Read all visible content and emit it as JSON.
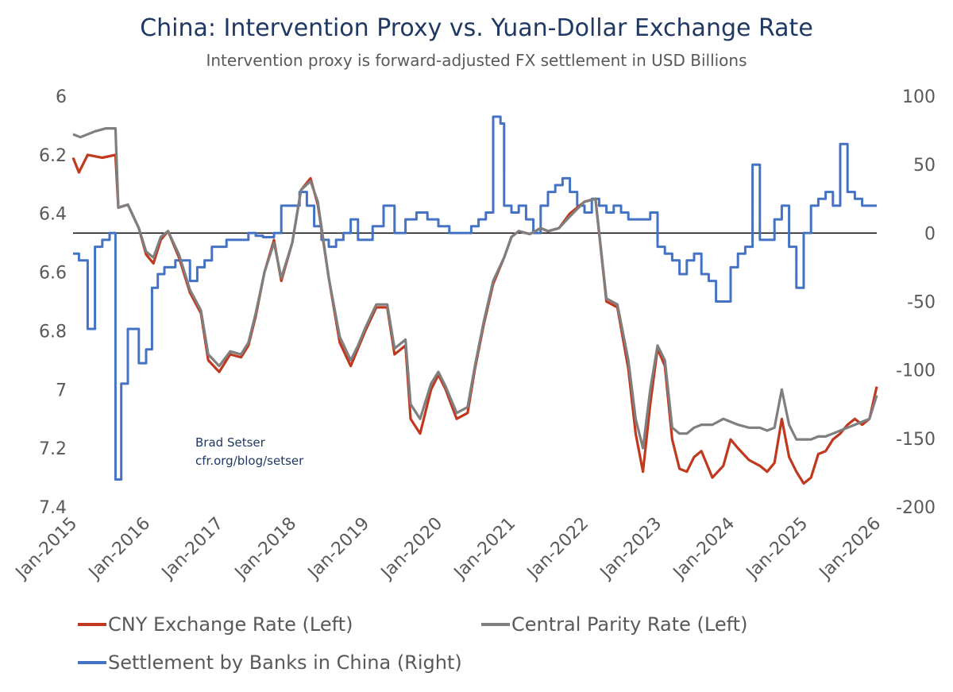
{
  "chart_data": {
    "type": "line",
    "title": "China: Intervention Proxy vs. Yuan-Dollar Exchange Rate",
    "subtitle": "Intervention proxy is forward-adjusted FX settlement in USD Billions",
    "annotation_lines": [
      "Brad Setser",
      "cfr.org/blog/setser"
    ],
    "x_tick_labels": [
      "Jan-2015",
      "Jan-2016",
      "Jan-2017",
      "Jan-2018",
      "Jan-2019",
      "Jan-2020",
      "Jan-2021",
      "Jan-2022",
      "Jan-2023",
      "Jan-2024",
      "Jan-2025",
      "Jan-2026"
    ],
    "x_range": [
      2015.0,
      2026.0
    ],
    "left_axis": {
      "ylim": [
        6.0,
        7.4
      ],
      "inverted": true,
      "tick_labels": [
        "6",
        "6.2",
        "6.4",
        "6.6",
        "6.8",
        "7",
        "7.2",
        "7.4"
      ],
      "tick_values": [
        6.0,
        6.2,
        6.4,
        6.6,
        6.8,
        7.0,
        7.2,
        7.4
      ]
    },
    "right_axis": {
      "ylim": [
        -200,
        100
      ],
      "tick_labels": [
        "100",
        "50",
        "0",
        "-50",
        "-100",
        "-150",
        "-200"
      ],
      "tick_values": [
        100,
        50,
        0,
        -50,
        -100,
        -150,
        -200
      ]
    },
    "zero_line_right": 0,
    "series": [
      {
        "name": "CNY Exchange Rate (Left)",
        "axis": "left",
        "color": "#c0391f",
        "x": [
          2015.0,
          2015.08,
          2015.2,
          2015.4,
          2015.58,
          2015.62,
          2015.75,
          2015.9,
          2016.0,
          2016.1,
          2016.2,
          2016.3,
          2016.45,
          2016.6,
          2016.75,
          2016.85,
          2017.0,
          2017.15,
          2017.3,
          2017.4,
          2017.5,
          2017.62,
          2017.75,
          2017.85,
          2018.0,
          2018.12,
          2018.25,
          2018.35,
          2018.5,
          2018.65,
          2018.8,
          2018.9,
          2019.0,
          2019.15,
          2019.3,
          2019.4,
          2019.55,
          2019.62,
          2019.75,
          2019.9,
          2020.0,
          2020.1,
          2020.25,
          2020.4,
          2020.5,
          2020.62,
          2020.75,
          2020.9,
          2021.0,
          2021.1,
          2021.25,
          2021.4,
          2021.5,
          2021.65,
          2021.8,
          2022.0,
          2022.15,
          2022.3,
          2022.45,
          2022.6,
          2022.7,
          2022.8,
          2022.9,
          2023.0,
          2023.1,
          2023.2,
          2023.3,
          2023.4,
          2023.5,
          2023.6,
          2023.75,
          2023.9,
          2024.0,
          2024.1,
          2024.25,
          2024.4,
          2024.5,
          2024.6,
          2024.7,
          2024.8,
          2024.9,
          2025.0,
          2025.1,
          2025.2,
          2025.3,
          2025.4,
          2025.5,
          2025.6,
          2025.7,
          2025.8,
          2025.9,
          2026.0
        ],
        "y": [
          6.21,
          6.26,
          6.2,
          6.21,
          6.2,
          6.38,
          6.37,
          6.45,
          6.54,
          6.57,
          6.49,
          6.46,
          6.55,
          6.67,
          6.74,
          6.9,
          6.94,
          6.88,
          6.89,
          6.85,
          6.75,
          6.6,
          6.49,
          6.63,
          6.5,
          6.32,
          6.28,
          6.37,
          6.62,
          6.84,
          6.92,
          6.86,
          6.8,
          6.72,
          6.72,
          6.88,
          6.85,
          7.1,
          7.15,
          7.0,
          6.95,
          7.0,
          7.1,
          7.08,
          6.93,
          6.78,
          6.64,
          6.55,
          6.48,
          6.46,
          6.47,
          6.45,
          6.46,
          6.45,
          6.4,
          6.36,
          6.35,
          6.7,
          6.72,
          6.93,
          7.15,
          7.28,
          7.05,
          6.86,
          6.92,
          7.17,
          7.27,
          7.28,
          7.23,
          7.21,
          7.3,
          7.26,
          7.17,
          7.2,
          7.24,
          7.26,
          7.28,
          7.25,
          7.1,
          7.23,
          7.28,
          7.32,
          7.3,
          7.22,
          7.21,
          7.17,
          7.15,
          7.12,
          7.1,
          7.12,
          7.1,
          6.99
        ]
      },
      {
        "name": "Central Parity Rate (Left)",
        "axis": "left",
        "color": "#7f7f7f",
        "x": [
          2015.0,
          2015.1,
          2015.3,
          2015.45,
          2015.58,
          2015.62,
          2015.75,
          2015.9,
          2016.0,
          2016.1,
          2016.2,
          2016.3,
          2016.45,
          2016.6,
          2016.75,
          2016.85,
          2017.0,
          2017.15,
          2017.3,
          2017.4,
          2017.5,
          2017.62,
          2017.75,
          2017.85,
          2018.0,
          2018.12,
          2018.25,
          2018.35,
          2018.5,
          2018.65,
          2018.8,
          2018.9,
          2019.0,
          2019.15,
          2019.3,
          2019.4,
          2019.55,
          2019.62,
          2019.75,
          2019.9,
          2020.0,
          2020.1,
          2020.25,
          2020.4,
          2020.5,
          2020.62,
          2020.75,
          2020.9,
          2021.0,
          2021.1,
          2021.25,
          2021.4,
          2021.5,
          2021.65,
          2021.8,
          2022.0,
          2022.15,
          2022.3,
          2022.45,
          2022.6,
          2022.7,
          2022.8,
          2022.9,
          2023.0,
          2023.1,
          2023.2,
          2023.3,
          2023.4,
          2023.5,
          2023.6,
          2023.75,
          2023.9,
          2024.0,
          2024.1,
          2024.25,
          2024.4,
          2024.5,
          2024.6,
          2024.7,
          2024.8,
          2024.9,
          2025.0,
          2025.1,
          2025.2,
          2025.3,
          2025.4,
          2025.5,
          2025.6,
          2025.7,
          2025.8,
          2025.9,
          2026.0
        ],
        "y": [
          6.13,
          6.14,
          6.12,
          6.11,
          6.11,
          6.38,
          6.37,
          6.45,
          6.53,
          6.55,
          6.48,
          6.46,
          6.54,
          6.66,
          6.73,
          6.88,
          6.92,
          6.87,
          6.88,
          6.84,
          6.74,
          6.6,
          6.5,
          6.62,
          6.5,
          6.32,
          6.29,
          6.36,
          6.62,
          6.82,
          6.9,
          6.85,
          6.79,
          6.71,
          6.71,
          6.86,
          6.83,
          7.05,
          7.1,
          6.98,
          6.94,
          6.99,
          7.08,
          7.06,
          6.92,
          6.77,
          6.63,
          6.55,
          6.48,
          6.46,
          6.47,
          6.45,
          6.46,
          6.45,
          6.41,
          6.36,
          6.35,
          6.69,
          6.71,
          6.9,
          7.1,
          7.2,
          7.0,
          6.85,
          6.9,
          7.13,
          7.15,
          7.15,
          7.13,
          7.12,
          7.12,
          7.1,
          7.11,
          7.12,
          7.13,
          7.13,
          7.14,
          7.13,
          7.0,
          7.12,
          7.17,
          7.17,
          7.17,
          7.16,
          7.16,
          7.15,
          7.14,
          7.13,
          7.12,
          7.11,
          7.1,
          7.02
        ]
      },
      {
        "name": "Settlement by Banks in China (Right)",
        "axis": "right",
        "color": "#4472c4",
        "x": [
          2015.0,
          2015.08,
          2015.2,
          2015.3,
          2015.4,
          2015.5,
          2015.58,
          2015.66,
          2015.75,
          2015.9,
          2016.0,
          2016.08,
          2016.16,
          2016.25,
          2016.4,
          2016.5,
          2016.6,
          2016.7,
          2016.8,
          2016.9,
          2017.0,
          2017.1,
          2017.25,
          2017.4,
          2017.5,
          2017.6,
          2017.75,
          2017.85,
          2018.0,
          2018.1,
          2018.2,
          2018.3,
          2018.4,
          2018.5,
          2018.6,
          2018.7,
          2018.8,
          2018.9,
          2019.0,
          2019.1,
          2019.25,
          2019.4,
          2019.55,
          2019.7,
          2019.85,
          2020.0,
          2020.15,
          2020.3,
          2020.45,
          2020.55,
          2020.65,
          2020.75,
          2020.85,
          2020.9,
          2021.0,
          2021.1,
          2021.2,
          2021.3,
          2021.4,
          2021.5,
          2021.6,
          2021.7,
          2021.8,
          2021.9,
          2022.0,
          2022.1,
          2022.2,
          2022.3,
          2022.4,
          2022.5,
          2022.6,
          2022.7,
          2022.8,
          2022.9,
          2023.0,
          2023.1,
          2023.2,
          2023.3,
          2023.4,
          2023.5,
          2023.6,
          2023.7,
          2023.8,
          2023.9,
          2024.0,
          2024.1,
          2024.2,
          2024.3,
          2024.4,
          2024.5,
          2024.6,
          2024.7,
          2024.8,
          2024.9,
          2025.0,
          2025.1,
          2025.2,
          2025.3,
          2025.4,
          2025.5,
          2025.6,
          2025.7,
          2025.8,
          2025.9,
          2026.0
        ],
        "y": [
          -15,
          -20,
          -70,
          -10,
          -5,
          0,
          -180,
          -110,
          -70,
          -95,
          -85,
          -40,
          -30,
          -25,
          -20,
          -20,
          -35,
          -25,
          -20,
          -10,
          -10,
          -5,
          -5,
          0,
          -2,
          -3,
          0,
          20,
          20,
          30,
          20,
          5,
          -5,
          -10,
          -5,
          0,
          10,
          -5,
          -5,
          5,
          20,
          0,
          10,
          15,
          10,
          5,
          0,
          0,
          5,
          10,
          15,
          85,
          80,
          20,
          15,
          20,
          10,
          0,
          20,
          30,
          35,
          40,
          30,
          20,
          15,
          25,
          20,
          15,
          20,
          15,
          10,
          10,
          10,
          15,
          -10,
          -15,
          -20,
          -30,
          -20,
          -15,
          -30,
          -35,
          -50,
          -50,
          -25,
          -15,
          -10,
          50,
          -5,
          -5,
          10,
          20,
          -10,
          -40,
          0,
          20,
          25,
          30,
          20,
          65,
          30,
          25,
          20,
          20,
          20
        ]
      }
    ]
  }
}
